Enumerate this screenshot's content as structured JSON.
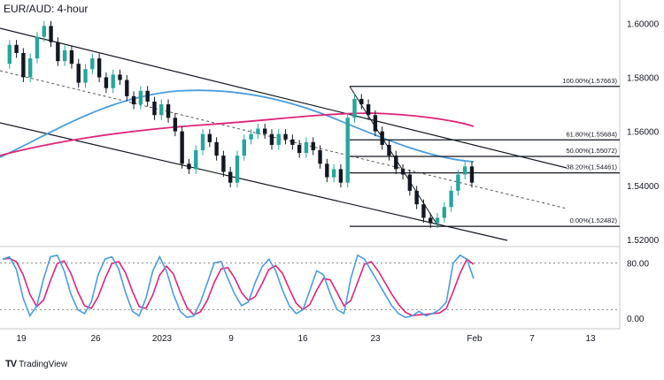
{
  "chart_data": [
    {
      "type": "candlestick",
      "title": "EUR/AUD: 4-hour",
      "x_ticks": [
        "19",
        "26",
        "2023",
        "9",
        "16",
        "23",
        "Feb",
        "7",
        "13"
      ],
      "y_ticks": [
        "1.60000",
        "1.58000",
        "1.56000",
        "1.54000",
        "1.52000"
      ],
      "ylim": [
        1.518,
        1.606
      ],
      "colors": {
        "up": "#26a69a",
        "down": "#131722",
        "ma_fast": "#4a9de0",
        "ma_slow": "#e0247a"
      },
      "fibonacci": [
        {
          "label": "100.00%(1.57663)",
          "value": 1.57663
        },
        {
          "label": "61.80%(1.55684)",
          "value": 1.55684
        },
        {
          "label": "50.00%(1.55072)",
          "value": 1.55072
        },
        {
          "label": "38.20%(1.54461)",
          "value": 1.54461
        },
        {
          "label": "0.00%(1.52482)",
          "value": 1.52482
        }
      ],
      "price_path": [
        1.585,
        1.592,
        1.589,
        1.58,
        1.587,
        1.595,
        1.599,
        1.593,
        1.586,
        1.59,
        1.585,
        1.578,
        1.583,
        1.587,
        1.58,
        1.576,
        1.581,
        1.579,
        1.573,
        1.57,
        1.575,
        1.571,
        1.566,
        1.57,
        1.565,
        1.56,
        1.548,
        1.546,
        1.553,
        1.559,
        1.556,
        1.551,
        1.545,
        1.541,
        1.551,
        1.557,
        1.559,
        1.561,
        1.559,
        1.555,
        1.559,
        1.557,
        1.555,
        1.552,
        1.556,
        1.553,
        1.548,
        1.543,
        1.546,
        1.541,
        1.565,
        1.572,
        1.57,
        1.566,
        1.56,
        1.555,
        1.551,
        1.546,
        1.544,
        1.538,
        1.533,
        1.528,
        1.526,
        1.528,
        1.532,
        1.538,
        1.544,
        1.547,
        1.541
      ]
    },
    {
      "type": "line",
      "title": "",
      "y_ticks": [
        "80.00",
        "0.00"
      ],
      "ylim": [
        0,
        100
      ],
      "levels": [
        80,
        20
      ],
      "colors": {
        "k": "#4a9de0",
        "d": "#e0247a"
      },
      "k_line": [
        85,
        88,
        72,
        35,
        12,
        25,
        60,
        88,
        90,
        70,
        40,
        20,
        15,
        30,
        65,
        85,
        88,
        72,
        42,
        18,
        12,
        35,
        70,
        88,
        70,
        40,
        18,
        10,
        12,
        30,
        55,
        80,
        82,
        60,
        40,
        25,
        30,
        55,
        75,
        85,
        70,
        45,
        25,
        15,
        20,
        45,
        70,
        65,
        40,
        20,
        15,
        60,
        90,
        85,
        70,
        55,
        40,
        25,
        15,
        10,
        12,
        18,
        12,
        15,
        20,
        30,
        80,
        90,
        85,
        60
      ]
    }
  ],
  "branding": {
    "logo_text": "TradingView"
  }
}
